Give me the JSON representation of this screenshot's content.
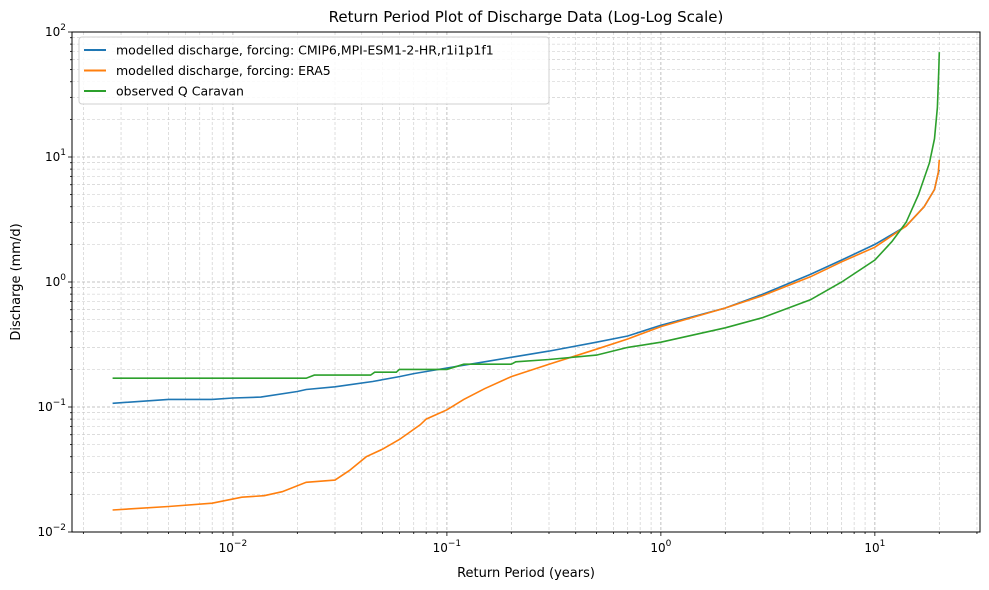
{
  "chart_data": {
    "type": "line",
    "title": "Return Period Plot of Discharge Data (Log-Log Scale)",
    "xlabel": "Return Period (years)",
    "ylabel": "Discharge (mm/d)",
    "xscale": "log",
    "yscale": "log",
    "xlim": [
      0.00177,
      31
    ],
    "ylim": [
      0.01,
      100
    ],
    "xticks": [
      {
        "v": 0.01,
        "base": "10",
        "exp": "−2"
      },
      {
        "v": 0.1,
        "base": "10",
        "exp": "−1"
      },
      {
        "v": 1,
        "base": "10",
        "exp": "0"
      },
      {
        "v": 10,
        "base": "10",
        "exp": "1"
      }
    ],
    "yticks": [
      {
        "v": 0.01,
        "base": "10",
        "exp": "−2"
      },
      {
        "v": 0.1,
        "base": "10",
        "exp": "−1"
      },
      {
        "v": 1,
        "base": "10",
        "exp": "0"
      },
      {
        "v": 10,
        "base": "10",
        "exp": "1"
      },
      {
        "v": 100,
        "base": "10",
        "exp": "2"
      }
    ],
    "grid": "major and minor, dashed",
    "legend_position": "top-left",
    "series": [
      {
        "name": "modelled discharge, forcing: CMIP6,MPI-ESM1-2-HR,r1i1p1f1",
        "color": "#1f77b4",
        "x": [
          0.00274,
          0.005,
          0.008,
          0.01,
          0.0135,
          0.02,
          0.022,
          0.03,
          0.045,
          0.06,
          0.07,
          0.1,
          0.15,
          0.2,
          0.3,
          0.5,
          0.7,
          1,
          2,
          3,
          5,
          7,
          10,
          14,
          17,
          19,
          19.8,
          20
        ],
        "y": [
          0.107,
          0.115,
          0.115,
          0.118,
          0.12,
          0.133,
          0.138,
          0.145,
          0.16,
          0.175,
          0.185,
          0.205,
          0.23,
          0.25,
          0.28,
          0.33,
          0.37,
          0.45,
          0.62,
          0.8,
          1.15,
          1.5,
          2.0,
          2.8,
          4,
          5.5,
          7.5,
          7.9
        ]
      },
      {
        "name": "modelled discharge, forcing: ERA5",
        "color": "#ff7f0e",
        "x": [
          0.00274,
          0.005,
          0.008,
          0.011,
          0.014,
          0.017,
          0.022,
          0.03,
          0.035,
          0.042,
          0.05,
          0.06,
          0.075,
          0.08,
          0.1,
          0.12,
          0.15,
          0.2,
          0.3,
          0.5,
          0.7,
          1,
          2,
          3,
          5,
          7,
          10,
          14,
          17,
          19,
          19.8,
          20
        ],
        "y": [
          0.015,
          0.016,
          0.017,
          0.019,
          0.0195,
          0.021,
          0.025,
          0.026,
          0.031,
          0.04,
          0.046,
          0.055,
          0.072,
          0.08,
          0.095,
          0.115,
          0.14,
          0.175,
          0.22,
          0.29,
          0.35,
          0.44,
          0.62,
          0.78,
          1.1,
          1.45,
          1.9,
          2.8,
          4,
          5.5,
          7.5,
          9.5
        ]
      },
      {
        "name": "observed Q Caravan",
        "color": "#2ca02c",
        "x": [
          0.00274,
          0.022,
          0.024,
          0.044,
          0.046,
          0.058,
          0.06,
          0.1,
          0.11,
          0.12,
          0.2,
          0.21,
          0.3,
          0.5,
          0.7,
          1,
          2,
          3,
          5,
          7,
          10,
          12,
          14,
          16,
          18,
          19,
          19.6,
          19.9,
          20
        ],
        "y": [
          0.17,
          0.17,
          0.18,
          0.18,
          0.19,
          0.19,
          0.2,
          0.2,
          0.21,
          0.22,
          0.22,
          0.23,
          0.24,
          0.26,
          0.3,
          0.33,
          0.43,
          0.52,
          0.72,
          1.0,
          1.5,
          2.1,
          3.0,
          5,
          9,
          14,
          25,
          50,
          69
        ]
      }
    ]
  }
}
